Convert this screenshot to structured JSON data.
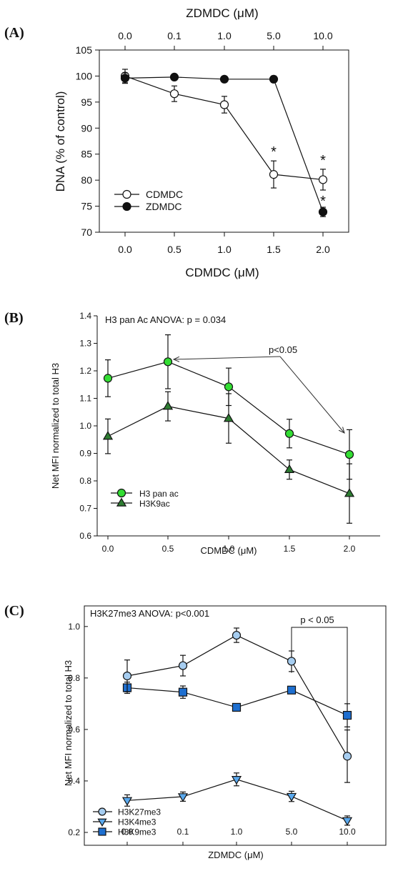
{
  "chart_data": [
    {
      "panel_label": "(A)",
      "type": "line",
      "top_axis_label": "ZDMDC (μM)",
      "top_tick_labels": [
        "0.0",
        "0.1",
        "1.0",
        "5.0",
        "10.0"
      ],
      "xlabel": "CDMDC (μM)",
      "ylabel": "DNA (% of control)",
      "x": [
        0.0,
        0.5,
        1.0,
        1.5,
        2.0
      ],
      "x_tick_labels": [
        "0.0",
        "0.5",
        "1.0",
        "1.5",
        "2.0"
      ],
      "ylim": [
        70,
        105
      ],
      "y_ticks": [
        70,
        75,
        80,
        85,
        90,
        95,
        100,
        105
      ],
      "legend_position": "lower-left",
      "series": [
        {
          "name": "CDMDC",
          "marker": "open-circle",
          "values": [
            100.0,
            96.6,
            94.5,
            81.1,
            80.1
          ],
          "errors": [
            1.3,
            1.5,
            1.6,
            2.6,
            2.0
          ]
        },
        {
          "name": "ZDMDC",
          "marker": "filled-circle",
          "values": [
            99.6,
            99.8,
            99.4,
            99.4,
            73.9
          ],
          "errors": [
            1.0,
            0.4,
            0.4,
            0.6,
            0.9
          ]
        }
      ],
      "significance_markers": [
        {
          "series": "CDMDC",
          "x": 1.5,
          "text": "*"
        },
        {
          "series": "CDMDC",
          "x": 2.0,
          "text": "*"
        },
        {
          "series": "ZDMDC",
          "x": 2.0,
          "text": "*"
        }
      ]
    },
    {
      "panel_label": "(B)",
      "type": "line",
      "title": "H3 pan Ac ANOVA: p = 0.034",
      "xlabel": "CDMDC (μM)",
      "ylabel": "Net MFI normalized to total H3",
      "x": [
        0.0,
        0.5,
        1.0,
        1.5,
        2.0
      ],
      "x_tick_labels": [
        "0.0",
        "0.5",
        "1.0",
        "1.5",
        "2.0"
      ],
      "ylim": [
        0.6,
        1.4
      ],
      "y_tick_labels": [
        "0.6",
        "0.7",
        "0.8",
        "0.9",
        "1.0",
        "1.1",
        "1.2",
        "1.3",
        "1.4"
      ],
      "legend_position": "lower-left",
      "annotation": "p<0.05",
      "colors": {
        "h3_pan_ac": "#33dd33",
        "h3k9ac": "#2e7d32"
      },
      "series": [
        {
          "name": "H3 pan ac",
          "marker": "circle",
          "values": [
            1.173,
            1.233,
            1.142,
            0.972,
            0.896
          ],
          "errors": [
            0.067,
            0.098,
            0.068,
            0.052,
            0.09
          ]
        },
        {
          "name": "H3K9ac",
          "marker": "triangle-up",
          "values": [
            0.962,
            1.071,
            1.027,
            0.841,
            0.754
          ],
          "errors": [
            0.063,
            0.053,
            0.09,
            0.035,
            0.108
          ]
        }
      ]
    },
    {
      "panel_label": "(C)",
      "type": "line",
      "title": "H3K27me3 ANOVA: p<0.001",
      "xlabel": "ZDMDC (μM)",
      "ylabel": "Net MFI normalized to total H3",
      "x_tick_labels": [
        "0.0",
        "0.1",
        "1.0",
        "5.0",
        "10.0"
      ],
      "ylim": [
        0.15,
        1.08
      ],
      "y_tick_labels": [
        "0.2",
        "0.4",
        "0.6",
        "0.8",
        "1.0"
      ],
      "legend_position": "lower-left",
      "annotation": "p < 0.05",
      "colors": {
        "h3k27me3": "#a6cdf0",
        "h3k4me3": "#5aa9ee",
        "h3k9me3": "#1e6fd0"
      },
      "series": [
        {
          "name": "H3K27me3",
          "marker": "circle",
          "values": [
            0.808,
            0.848,
            0.966,
            0.865,
            0.496
          ],
          "errors": [
            0.062,
            0.04,
            0.028,
            0.04,
            0.102
          ]
        },
        {
          "name": "H3K4me3",
          "marker": "triangle-down",
          "values": [
            0.324,
            0.339,
            0.406,
            0.34,
            0.246
          ],
          "errors": [
            0.022,
            0.018,
            0.025,
            0.02,
            0.018
          ]
        },
        {
          "name": "H3K9me3",
          "marker": "square",
          "values": [
            0.762,
            0.745,
            0.686,
            0.753,
            0.655
          ],
          "errors": [
            0.022,
            0.024,
            0.0,
            0.0,
            0.045
          ]
        }
      ]
    }
  ]
}
